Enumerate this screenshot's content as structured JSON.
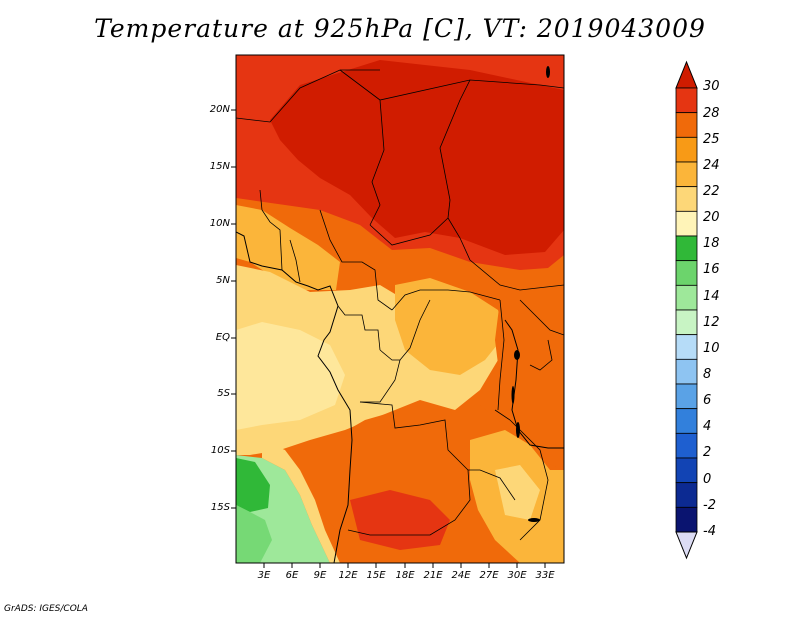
{
  "title": "Temperature at 925hPa [C], VT: 2019043009",
  "credit": "GrADS: IGES/COLA",
  "lat_labels": [
    "20N",
    "15N",
    "10N",
    "5N",
    "EQ",
    "5S",
    "10S",
    "15S"
  ],
  "lon_labels": [
    "3E",
    "6E",
    "9E",
    "12E",
    "15E",
    "18E",
    "21E",
    "24E",
    "27E",
    "30E",
    "33E"
  ],
  "colorbar": {
    "labels": [
      "30",
      "28",
      "25",
      "24",
      "22",
      "20",
      "18",
      "16",
      "14",
      "12",
      "10",
      "8",
      "6",
      "4",
      "2",
      "0",
      "-2",
      "-4"
    ],
    "colors": [
      "#d01c00",
      "#e53512",
      "#f06a0a",
      "#f89a16",
      "#fbb53a",
      "#fdd778",
      "#fff4b8",
      "#30b838",
      "#6cd46c",
      "#9ee89a",
      "#c8f4c4",
      "#b6dcf8",
      "#8ec4f2",
      "#5aa2e6",
      "#3280dc",
      "#1e5fd0",
      "#1244b4",
      "#0c2a92",
      "#0a1470",
      "#dcdcf4"
    ]
  },
  "map": {
    "region": "Central Africa",
    "lon_range": [
      0,
      35
    ],
    "lat_range": [
      -20,
      24.5
    ],
    "unit": "C"
  }
}
